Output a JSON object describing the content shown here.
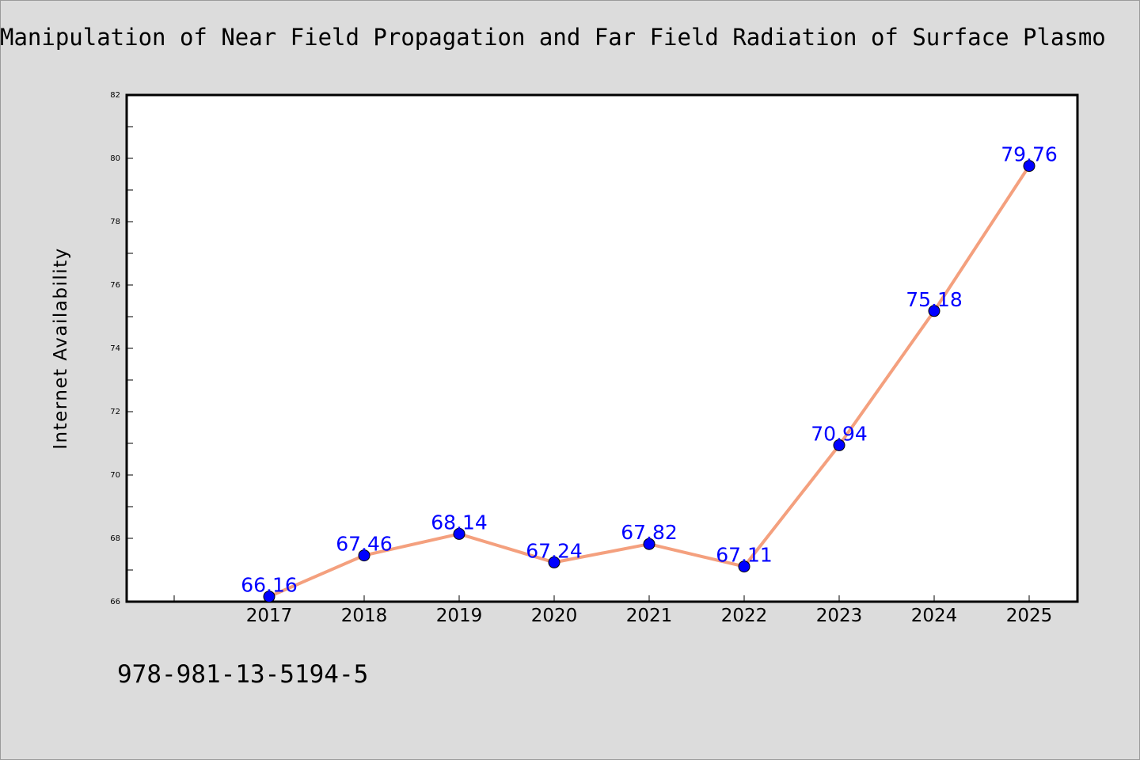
{
  "caption": "978-981-13-5194-5",
  "colors": {
    "background": "#dcdcdc",
    "line": "#f4a07e",
    "marker": "#0000ff",
    "label": "#0000ff"
  },
  "chart_data": {
    "type": "line",
    "title": "Manipulation of Near Field Propagation and Far Field Radiation of Surface Plasmo",
    "xlabel": "",
    "ylabel": "Internet Availability",
    "categories": [
      "2017",
      "2018",
      "2019",
      "2020",
      "2021",
      "2022",
      "2023",
      "2024",
      "2025"
    ],
    "values": [
      66.16,
      67.46,
      68.14,
      67.24,
      67.82,
      67.11,
      70.94,
      75.18,
      79.76
    ],
    "data_labels": [
      "66.16",
      "67.46",
      "68.14",
      "67.24",
      "67.82",
      "67.11",
      "70.94",
      "75.18",
      "79.76"
    ],
    "ylim": [
      66,
      82
    ],
    "yticks": [
      "66",
      "68",
      "70",
      "72",
      "74",
      "76",
      "78",
      "80",
      "82"
    ],
    "grid": false,
    "legend": "none"
  }
}
